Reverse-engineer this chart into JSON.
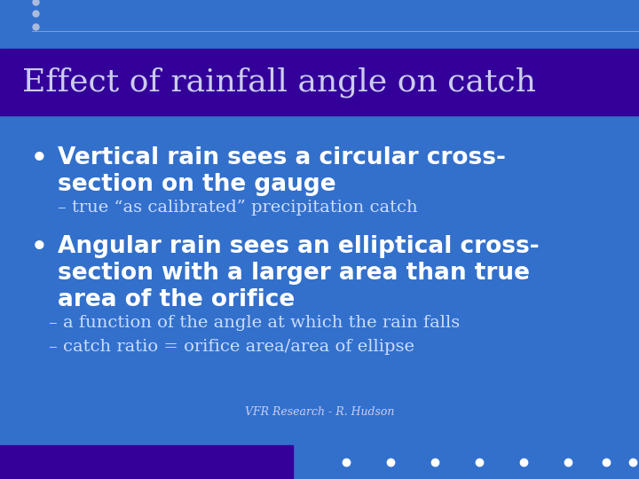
{
  "fig_width": 7.2,
  "fig_height": 5.4,
  "bg_color": "#3370CC",
  "title_bar_color": "#330099",
  "title_text": "Effect of rainfall angle on catch",
  "title_color": "#CCCCEE",
  "title_fontsize": 26,
  "bullet1_line1": "Vertical rain sees a circular cross-",
  "bullet1_line2": "section on the gauge",
  "bullet_fontsize": 19,
  "bullet_color": "#FFFFFF",
  "sub1_text": "– true “as calibrated” precipitation catch",
  "sub_fontsize": 14,
  "sub_color": "#CCDDFF",
  "bullet2_line1": "Angular rain sees an elliptical cross-",
  "bullet2_line2": "section with a larger area than true",
  "bullet2_line3": "area of the orifice",
  "sub2a_text": "– a function of the angle at which the rain falls",
  "sub2b_text": "– catch ratio = orifice area/area of ellipse",
  "footer_text": "VFR Research - R. Hudson",
  "footer_color": "#CCCCEE",
  "footer_fontsize": 9,
  "dot_color": "#FFFFFF",
  "top_dot_color": "#AABBDD",
  "bottom_bar_color": "#330099"
}
